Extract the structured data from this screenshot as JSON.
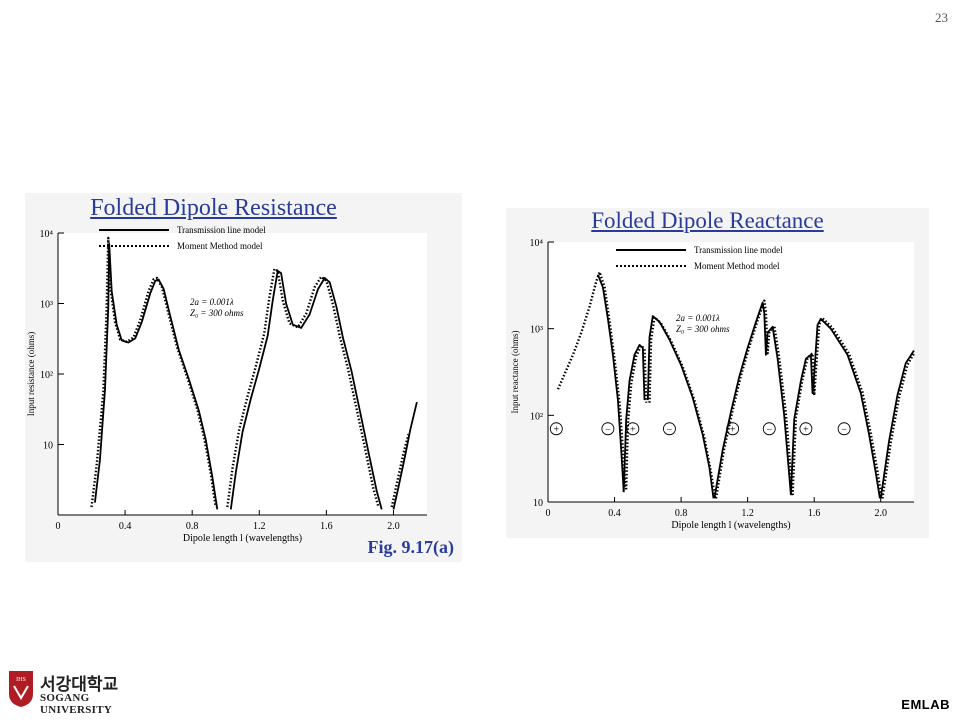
{
  "page": {
    "number": "23"
  },
  "footer": {
    "logo_korean": "서강대학교",
    "logo_english": "SOGANG UNIVERSITY",
    "logo_mark_text": "IHS",
    "brand": "EMLAB"
  },
  "colors": {
    "title": "#2a3c9a",
    "curve": "#000000",
    "panel_bg": "#f4f4f4",
    "logo_red": "#b01c24"
  },
  "chart_data": [
    {
      "type": "line",
      "title": "Folded Dipole Resistance",
      "figure_label": "Fig. 9.17(a)",
      "xlabel": "Dipole length l (wavelengths)",
      "ylabel": "Input resistance (ohms)",
      "log_y": true,
      "xlim": [
        0,
        2.2
      ],
      "ylim": [
        1,
        10000
      ],
      "x_ticks": [
        "0",
        "0.4",
        "0.8",
        "1.2",
        "1.6",
        "2.0"
      ],
      "y_ticks": [
        "10",
        "10²",
        "10³",
        "10⁴"
      ],
      "annotation": [
        "2a = 0.001λ",
        "Z₀ = 300 ohms"
      ],
      "series": [
        {
          "name": "Transmission line model",
          "style": "solid",
          "segments": [
            [
              [
                0.22,
                1.5
              ],
              [
                0.25,
                6
              ],
              [
                0.28,
                60
              ],
              [
                0.3,
                900
              ],
              [
                0.305,
                7000
              ],
              [
                0.32,
                1500
              ],
              [
                0.35,
                500
              ],
              [
                0.38,
                300
              ],
              [
                0.42,
                280
              ],
              [
                0.46,
                320
              ],
              [
                0.5,
                550
              ],
              [
                0.55,
                1400
              ],
              [
                0.58,
                2100
              ],
              [
                0.6,
                2200
              ],
              [
                0.63,
                1600
              ],
              [
                0.67,
                650
              ],
              [
                0.72,
                220
              ],
              [
                0.78,
                85
              ],
              [
                0.84,
                30
              ],
              [
                0.88,
                12
              ],
              [
                0.92,
                3.5
              ],
              [
                0.95,
                1.2
              ]
            ],
            [
              [
                1.03,
                1.2
              ],
              [
                1.06,
                4
              ],
              [
                1.1,
                15
              ],
              [
                1.15,
                45
              ],
              [
                1.2,
                120
              ],
              [
                1.25,
                350
              ],
              [
                1.28,
                1100
              ],
              [
                1.31,
                2900
              ],
              [
                1.33,
                2700
              ],
              [
                1.36,
                1000
              ],
              [
                1.4,
                500
              ],
              [
                1.45,
                450
              ],
              [
                1.5,
                700
              ],
              [
                1.55,
                1600
              ],
              [
                1.59,
                2300
              ],
              [
                1.62,
                2000
              ],
              [
                1.66,
                900
              ],
              [
                1.7,
                320
              ],
              [
                1.75,
                110
              ],
              [
                1.8,
                30
              ],
              [
                1.85,
                8
              ],
              [
                1.9,
                2.2
              ],
              [
                1.93,
                1.2
              ]
            ],
            [
              [
                2.0,
                1.2
              ],
              [
                2.03,
                2.5
              ],
              [
                2.07,
                7
              ],
              [
                2.1,
                16
              ],
              [
                2.14,
                40
              ]
            ]
          ]
        },
        {
          "name": "Moment Method model",
          "style": "dotted",
          "segments": [
            [
              [
                0.2,
                1.3
              ],
              [
                0.23,
                5
              ],
              [
                0.27,
                55
              ],
              [
                0.29,
                800
              ],
              [
                0.3,
                8500
              ],
              [
                0.31,
                1800
              ],
              [
                0.34,
                550
              ],
              [
                0.37,
                310
              ],
              [
                0.41,
                285
              ],
              [
                0.45,
                330
              ],
              [
                0.49,
                580
              ],
              [
                0.54,
                1500
              ],
              [
                0.57,
                2200
              ],
              [
                0.59,
                2300
              ],
              [
                0.62,
                1700
              ],
              [
                0.66,
                700
              ],
              [
                0.71,
                240
              ],
              [
                0.77,
                90
              ],
              [
                0.83,
                32
              ],
              [
                0.87,
                13
              ],
              [
                0.91,
                4
              ],
              [
                0.94,
                1.3
              ]
            ],
            [
              [
                1.01,
                1.3
              ],
              [
                1.04,
                4.5
              ],
              [
                1.08,
                16
              ],
              [
                1.13,
                48
              ],
              [
                1.18,
                130
              ],
              [
                1.23,
                380
              ],
              [
                1.26,
                1200
              ],
              [
                1.29,
                3100
              ],
              [
                1.31,
                2900
              ],
              [
                1.34,
                1100
              ],
              [
                1.38,
                520
              ],
              [
                1.43,
                460
              ],
              [
                1.48,
                720
              ],
              [
                1.53,
                1700
              ],
              [
                1.57,
                2400
              ],
              [
                1.6,
                2100
              ],
              [
                1.64,
                950
              ],
              [
                1.68,
                340
              ],
              [
                1.73,
                115
              ],
              [
                1.78,
                32
              ],
              [
                1.83,
                9
              ],
              [
                1.88,
                2.4
              ],
              [
                1.91,
                1.3
              ]
            ],
            [
              [
                1.99,
                1.3
              ],
              [
                2.02,
                2.8
              ],
              [
                2.06,
                7.5
              ],
              [
                2.09,
                14
              ]
            ]
          ]
        }
      ]
    },
    {
      "type": "line",
      "title": "Folded Dipole Reactance",
      "xlabel": "Dipole length l (wavelengths)",
      "ylabel": "Input reactance (ohms)",
      "log_y": true,
      "xlim": [
        0,
        2.2
      ],
      "ylim": [
        10,
        10000
      ],
      "x_ticks": [
        "0",
        "0.4",
        "0.8",
        "1.2",
        "1.6",
        "2.0"
      ],
      "y_ticks": [
        "10",
        "10²",
        "10³",
        "10⁴"
      ],
      "annotation": [
        "2a = 0.001λ",
        "Z₀ = 300 ohms"
      ],
      "sign_markers": [
        {
          "x": 0.05,
          "sign": "+"
        },
        {
          "x": 0.36,
          "sign": "−"
        },
        {
          "x": 0.51,
          "sign": "+"
        },
        {
          "x": 0.73,
          "sign": "−"
        },
        {
          "x": 1.11,
          "sign": "+"
        },
        {
          "x": 1.33,
          "sign": "−"
        },
        {
          "x": 1.55,
          "sign": "+"
        },
        {
          "x": 1.78,
          "sign": "−"
        }
      ],
      "series": [
        {
          "name": "Transmission line model",
          "style": "solid",
          "segments": [
            [
              [
                0.3,
                4200
              ],
              [
                0.33,
                3000
              ],
              [
                0.36,
                1300
              ],
              [
                0.39,
                500
              ],
              [
                0.42,
                150
              ],
              [
                0.44,
                40
              ],
              [
                0.455,
                13
              ]
            ],
            [
              [
                0.455,
                13
              ],
              [
                0.47,
                90
              ],
              [
                0.49,
                250
              ],
              [
                0.52,
                500
              ],
              [
                0.55,
                650
              ],
              [
                0.57,
                600
              ],
              [
                0.58,
                150
              ]
            ],
            [
              [
                0.6,
                150
              ],
              [
                0.61,
                800
              ],
              [
                0.63,
                1400
              ],
              [
                0.67,
                1200
              ],
              [
                0.73,
                750
              ],
              [
                0.8,
                380
              ],
              [
                0.87,
                160
              ],
              [
                0.93,
                60
              ],
              [
                0.97,
                25
              ],
              [
                0.995,
                11
              ]
            ],
            [
              [
                1.0,
                11
              ],
              [
                1.05,
                40
              ],
              [
                1.1,
                110
              ],
              [
                1.15,
                280
              ],
              [
                1.2,
                600
              ],
              [
                1.25,
                1200
              ],
              [
                1.29,
                2000
              ],
              [
                1.3,
                1500
              ],
              [
                1.31,
                500
              ],
              [
                1.32,
                900
              ],
              [
                1.35,
                1050
              ],
              [
                1.38,
                450
              ],
              [
                1.42,
                100
              ],
              [
                1.46,
                12
              ]
            ],
            [
              [
                1.46,
                12
              ],
              [
                1.48,
                90
              ],
              [
                1.52,
                250
              ],
              [
                1.55,
                450
              ],
              [
                1.58,
                500
              ],
              [
                1.59,
                180
              ],
              [
                1.6,
                300
              ],
              [
                1.62,
                1100
              ],
              [
                1.64,
                1300
              ],
              [
                1.7,
                1000
              ],
              [
                1.8,
                500
              ],
              [
                1.88,
                180
              ],
              [
                1.93,
                60
              ],
              [
                1.97,
                22
              ],
              [
                1.995,
                11
              ]
            ],
            [
              [
                2.0,
                11
              ],
              [
                2.05,
                50
              ],
              [
                2.1,
                170
              ],
              [
                2.15,
                400
              ],
              [
                2.2,
                560
              ]
            ]
          ]
        },
        {
          "name": "Moment Method model",
          "style": "dotted",
          "segments": [
            [
              [
                0.06,
                200
              ],
              [
                0.1,
                300
              ],
              [
                0.15,
                500
              ],
              [
                0.2,
                900
              ],
              [
                0.25,
                1800
              ],
              [
                0.29,
                3500
              ],
              [
                0.31,
                4500
              ],
              [
                0.34,
                3000
              ],
              [
                0.37,
                1200
              ],
              [
                0.4,
                450
              ],
              [
                0.43,
                140
              ],
              [
                0.45,
                40
              ],
              [
                0.465,
                14
              ]
            ],
            [
              [
                0.47,
                14
              ],
              [
                0.48,
                80
              ],
              [
                0.5,
                230
              ],
              [
                0.53,
                480
              ],
              [
                0.56,
                640
              ],
              [
                0.58,
                580
              ],
              [
                0.59,
                140
              ]
            ],
            [
              [
                0.61,
                140
              ],
              [
                0.62,
                750
              ],
              [
                0.64,
                1350
              ],
              [
                0.68,
                1150
              ],
              [
                0.74,
                720
              ],
              [
                0.81,
                360
              ],
              [
                0.88,
                150
              ],
              [
                0.94,
                55
              ],
              [
                0.98,
                22
              ],
              [
                1.005,
                11
              ]
            ],
            [
              [
                1.01,
                11
              ],
              [
                1.06,
                42
              ],
              [
                1.11,
                115
              ],
              [
                1.16,
                290
              ],
              [
                1.21,
                620
              ],
              [
                1.26,
                1250
              ],
              [
                1.3,
                2100
              ],
              [
                1.31,
                1550
              ],
              [
                1.32,
                520
              ],
              [
                1.33,
                920
              ],
              [
                1.36,
                1080
              ],
              [
                1.39,
                460
              ],
              [
                1.43,
                105
              ],
              [
                1.47,
                12
              ]
            ],
            [
              [
                1.47,
                12
              ],
              [
                1.49,
                95
              ],
              [
                1.53,
                260
              ],
              [
                1.56,
                460
              ],
              [
                1.59,
                520
              ],
              [
                1.6,
                170
              ],
              [
                1.61,
                310
              ],
              [
                1.63,
                1120
              ],
              [
                1.65,
                1320
              ],
              [
                1.71,
                1020
              ],
              [
                1.81,
                510
              ],
              [
                1.89,
                185
              ],
              [
                1.94,
                62
              ],
              [
                1.98,
                23
              ],
              [
                2.005,
                11
              ]
            ],
            [
              [
                2.01,
                11
              ],
              [
                2.06,
                48
              ],
              [
                2.11,
                160
              ],
              [
                2.16,
                380
              ],
              [
                2.2,
                520
              ]
            ]
          ]
        }
      ]
    }
  ]
}
